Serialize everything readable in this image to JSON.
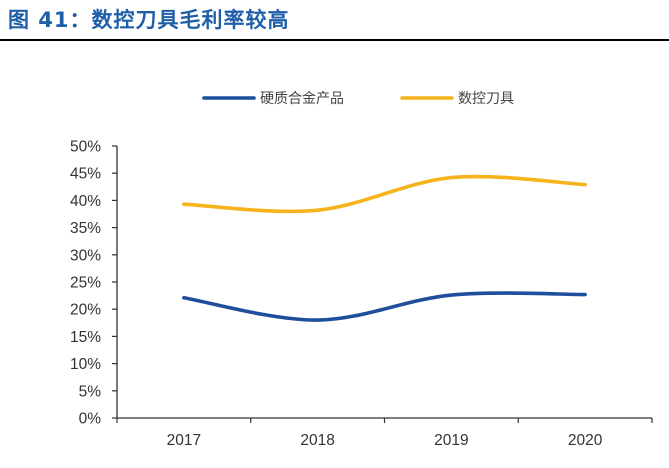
{
  "figure_title": "图 41：数控刀具毛利率较高",
  "colors": {
    "title": "#1f5fa8",
    "series_1": "#1f4e9c",
    "series_2": "#f5b31c",
    "axis": "#333333"
  },
  "chart_data": {
    "type": "line",
    "title": "",
    "xlabel": "",
    "ylabel": "",
    "smooth": true,
    "grid": false,
    "legend_position": "top-center",
    "categories": [
      "2017",
      "2018",
      "2019",
      "2020"
    ],
    "y_ticks": [
      "0%",
      "5%",
      "10%",
      "15%",
      "20%",
      "25%",
      "30%",
      "35%",
      "40%",
      "45%",
      "50%"
    ],
    "ylim": [
      0,
      50
    ],
    "y_unit": "%",
    "series": [
      {
        "name": "硬质合金产品",
        "color": "#1f4e9c",
        "values": [
          22.1,
          18.0,
          22.6,
          22.7
        ]
      },
      {
        "name": "数控刀具",
        "color": "#f5b31c",
        "values": [
          39.3,
          38.2,
          44.2,
          42.9
        ]
      }
    ]
  }
}
